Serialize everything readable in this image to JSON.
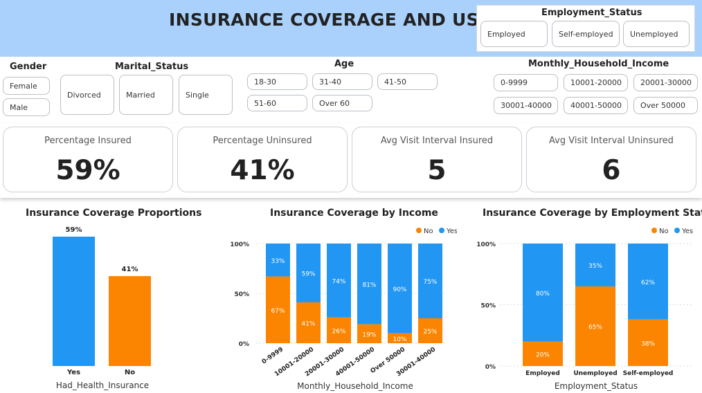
{
  "header": {
    "title": "INSURANCE COVERAGE AND USAGE"
  },
  "slicers": {
    "employment": {
      "title": "Employment_Status",
      "options": [
        "Employed",
        "Self-employed",
        "Unemployed"
      ]
    },
    "gender": {
      "title": "Gender",
      "options": [
        "Female",
        "Male"
      ]
    },
    "marital": {
      "title": "Marital_Status",
      "options": [
        "Divorced",
        "Married",
        "Single"
      ]
    },
    "age": {
      "title": "Age",
      "options": [
        "18-30",
        "31-40",
        "41-50",
        "51-60",
        "Over 60"
      ]
    },
    "income": {
      "title": "Monthly_Household_Income",
      "options": [
        "0-9999",
        "10001-20000",
        "20001-30000",
        "30001-40000",
        "40001-50000",
        "Over 50000"
      ]
    }
  },
  "kpis": [
    {
      "label": "Percentage Insured",
      "value": "59%"
    },
    {
      "label": "Percentage Uninsured",
      "value": "41%"
    },
    {
      "label": "Avg Visit Interval Insured",
      "value": "5"
    },
    {
      "label": "Avg Visit Interval Uninsured",
      "value": "6"
    }
  ],
  "colors": {
    "yes": "#2196f3",
    "no": "#fb8500"
  },
  "chart_data": [
    {
      "type": "bar",
      "title": "Insurance Coverage Proportions",
      "xlabel": "Had_Health_Insurance",
      "categories": [
        "Yes",
        "No"
      ],
      "values": [
        59,
        41
      ],
      "data_labels": [
        "59%",
        "41%"
      ],
      "ylim": [
        0,
        59
      ]
    },
    {
      "type": "bar",
      "stacked": "100%",
      "title": "Insurance Coverage by Income",
      "xlabel": "Monthly_Household_Income",
      "categories": [
        "0-9999",
        "10001-20000",
        "20001-30000",
        "40001-50000",
        "Over 50000",
        "30001-40000"
      ],
      "series": [
        {
          "name": "No",
          "values": [
            67,
            41,
            26,
            19,
            10,
            25
          ]
        },
        {
          "name": "Yes",
          "values": [
            33,
            59,
            74,
            81,
            90,
            75
          ]
        }
      ],
      "yticks": [
        "0%",
        "50%",
        "100%"
      ],
      "legend": "top-right"
    },
    {
      "type": "bar",
      "stacked": "100%",
      "title": "Insurance Coverage by Employment Status",
      "xlabel": "Employment_Status",
      "categories": [
        "Employed",
        "Unemployed",
        "Self-employed"
      ],
      "series": [
        {
          "name": "No",
          "values": [
            20,
            65,
            38
          ]
        },
        {
          "name": "Yes",
          "values": [
            80,
            35,
            62
          ]
        }
      ],
      "yticks": [
        "0%",
        "50%",
        "100%"
      ],
      "legend": "top-right"
    }
  ]
}
